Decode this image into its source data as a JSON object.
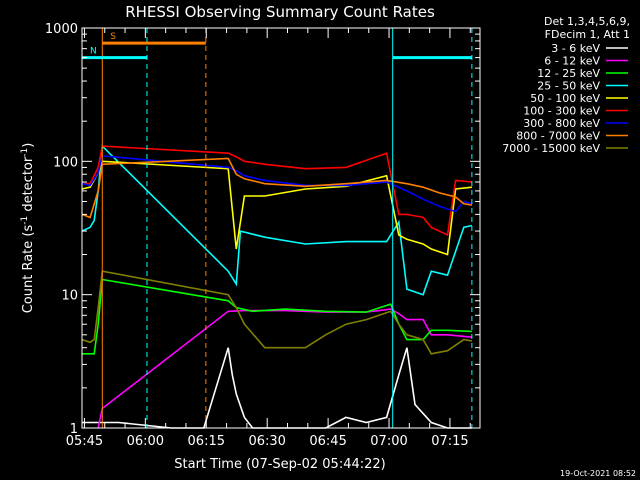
{
  "chart_data": {
    "type": "line",
    "title": "RHESSI Observing Summary Count Rates",
    "xlabel": "Start Time (07-Sep-02 05:44:22)",
    "ylabel_main": "Count Rate (s",
    "ylabel_sup1": "-1",
    "ylabel_mid": " detector",
    "ylabel_sup2": "-1",
    "ylabel_end": ")",
    "x_ticks": [
      "05:45",
      "06:00",
      "06:15",
      "06:30",
      "06:45",
      "07:00",
      "07:15"
    ],
    "x_tick_minutes": [
      0.6,
      15.6,
      30.6,
      45.6,
      60.6,
      75.6,
      90.6
    ],
    "xlim_minutes": [
      0,
      98
    ],
    "y_scale": "log",
    "ylim": [
      1,
      1000
    ],
    "y_ticks": [
      "1",
      "10",
      "100",
      "1000"
    ],
    "legend": {
      "header1": "Det 1,3,4,5,6,9,",
      "header2": "FDecim 1, Att 1",
      "placement": "top-right, outside plot"
    },
    "series": [
      {
        "name": "3 - 6 keV",
        "color": "#ffffff",
        "points": [
          [
            0,
            1.1
          ],
          [
            5,
            1.1
          ],
          [
            9,
            1.1
          ],
          [
            22,
            1.0
          ],
          [
            30,
            1.0
          ],
          [
            36,
            4
          ],
          [
            37,
            2.5
          ],
          [
            38,
            1.8
          ],
          [
            40,
            1.2
          ],
          [
            42,
            1.0
          ],
          [
            60,
            1.0
          ],
          [
            65,
            1.2
          ],
          [
            70,
            1.1
          ],
          [
            75,
            1.2
          ],
          [
            78,
            2.5
          ],
          [
            80,
            4
          ],
          [
            82,
            1.5
          ],
          [
            86,
            1.1
          ],
          [
            90,
            1.0
          ],
          [
            96,
            1.0
          ]
        ]
      },
      {
        "name": "6 - 12 keV",
        "color": "#ff00ff",
        "points": [
          [
            4,
            1.0
          ],
          [
            5,
            1.4
          ],
          [
            36,
            7.5
          ],
          [
            40,
            7.6
          ],
          [
            50,
            7.6
          ],
          [
            60,
            7.4
          ],
          [
            70,
            7.4
          ],
          [
            76,
            7.8
          ],
          [
            78,
            7.2
          ],
          [
            80,
            6.5
          ],
          [
            84,
            6.5
          ],
          [
            86,
            5.0
          ],
          [
            90,
            5.0
          ],
          [
            96,
            4.8
          ]
        ]
      },
      {
        "name": "12 - 25 keV",
        "color": "#00ff00",
        "points": [
          [
            0,
            3.6
          ],
          [
            3,
            3.6
          ],
          [
            4,
            6
          ],
          [
            5,
            13
          ],
          [
            36,
            9
          ],
          [
            38,
            8
          ],
          [
            42,
            7.5
          ],
          [
            50,
            7.8
          ],
          [
            60,
            7.5
          ],
          [
            70,
            7.4
          ],
          [
            76,
            8.5
          ],
          [
            78,
            6
          ],
          [
            80,
            4.6
          ],
          [
            84,
            4.6
          ],
          [
            86,
            5.4
          ],
          [
            90,
            5.4
          ],
          [
            96,
            5.3
          ]
        ]
      },
      {
        "name": "25 - 50 keV",
        "color": "#00ffff",
        "points": [
          [
            0,
            30
          ],
          [
            2,
            32
          ],
          [
            3,
            36
          ],
          [
            4,
            60
          ],
          [
            5,
            130
          ],
          [
            36,
            15
          ],
          [
            38,
            12
          ],
          [
            39,
            30
          ],
          [
            45,
            27
          ],
          [
            55,
            24
          ],
          [
            65,
            25
          ],
          [
            75,
            25
          ],
          [
            78,
            35
          ],
          [
            80,
            11
          ],
          [
            84,
            10
          ],
          [
            86,
            15
          ],
          [
            90,
            14
          ],
          [
            94,
            32
          ],
          [
            96,
            33
          ]
        ]
      },
      {
        "name": "50 - 100 keV",
        "color": "#ffff00",
        "points": [
          [
            0,
            62
          ],
          [
            2,
            64
          ],
          [
            4,
            82
          ],
          [
            5,
            100
          ],
          [
            36,
            88
          ],
          [
            38,
            22
          ],
          [
            40,
            55
          ],
          [
            45,
            55
          ],
          [
            55,
            62
          ],
          [
            65,
            65
          ],
          [
            75,
            78
          ],
          [
            78,
            28
          ],
          [
            80,
            26
          ],
          [
            84,
            24
          ],
          [
            86,
            22
          ],
          [
            90,
            20
          ],
          [
            92,
            62
          ],
          [
            96,
            64
          ]
        ]
      },
      {
        "name": "100 - 300 keV",
        "color": "#ff0000",
        "points": [
          [
            0,
            68
          ],
          [
            2,
            68
          ],
          [
            4,
            90
          ],
          [
            5,
            130
          ],
          [
            36,
            115
          ],
          [
            38,
            108
          ],
          [
            40,
            100
          ],
          [
            45,
            95
          ],
          [
            55,
            88
          ],
          [
            65,
            90
          ],
          [
            75,
            115
          ],
          [
            78,
            40
          ],
          [
            80,
            40
          ],
          [
            84,
            38
          ],
          [
            86,
            32
          ],
          [
            90,
            28
          ],
          [
            92,
            72
          ],
          [
            96,
            70
          ]
        ]
      },
      {
        "name": "300 - 800 keV",
        "color": "#0000ff",
        "points": [
          [
            0,
            68
          ],
          [
            2,
            66
          ],
          [
            4,
            82
          ],
          [
            5,
            110
          ],
          [
            36,
            90
          ],
          [
            38,
            85
          ],
          [
            40,
            78
          ],
          [
            45,
            72
          ],
          [
            55,
            66
          ],
          [
            65,
            66
          ],
          [
            75,
            70
          ],
          [
            80,
            60
          ],
          [
            84,
            52
          ],
          [
            88,
            46
          ],
          [
            92,
            42
          ],
          [
            94,
            50
          ],
          [
            96,
            48
          ]
        ]
      },
      {
        "name": "800 - 7000 keV",
        "color": "#ff8000",
        "points": [
          [
            0,
            40
          ],
          [
            2,
            38
          ],
          [
            4,
            60
          ],
          [
            5,
            95
          ],
          [
            36,
            105
          ],
          [
            38,
            80
          ],
          [
            40,
            74
          ],
          [
            45,
            68
          ],
          [
            55,
            65
          ],
          [
            65,
            68
          ],
          [
            75,
            72
          ],
          [
            80,
            68
          ],
          [
            84,
            64
          ],
          [
            88,
            58
          ],
          [
            92,
            54
          ],
          [
            94,
            48
          ],
          [
            96,
            47
          ]
        ]
      },
      {
        "name": "7000 - 15000 keV",
        "color": "#808000",
        "points": [
          [
            0,
            4.6
          ],
          [
            2,
            4.4
          ],
          [
            3,
            4.6
          ],
          [
            4,
            8
          ],
          [
            5,
            15
          ],
          [
            36,
            10
          ],
          [
            38,
            8
          ],
          [
            40,
            6
          ],
          [
            45,
            4
          ],
          [
            55,
            4
          ],
          [
            60,
            5
          ],
          [
            65,
            6
          ],
          [
            70,
            6.5
          ],
          [
            76,
            7.5
          ],
          [
            78,
            6
          ],
          [
            80,
            5
          ],
          [
            84,
            4.6
          ],
          [
            86,
            3.6
          ],
          [
            90,
            3.8
          ],
          [
            94,
            4.6
          ],
          [
            96,
            4.5
          ]
        ]
      }
    ],
    "flags": [
      {
        "label": "S",
        "color": "#ff8000",
        "start": 5,
        "end": 30.5,
        "level": 770
      },
      {
        "label": "N",
        "color": "#00ffff",
        "start": 0,
        "end": 16,
        "level": 600
      },
      {
        "label": "",
        "color": "#00ffff",
        "start": 76.5,
        "end": 96,
        "level": 600
      }
    ],
    "vlines": [
      {
        "x": 5,
        "color": "#ff8000",
        "style": "solid"
      },
      {
        "x": 30.5,
        "color": "#ff8000",
        "style": "dashed"
      },
      {
        "x": 16,
        "color": "#00ffff",
        "style": "dashed"
      },
      {
        "x": 76.5,
        "color": "#00ffff",
        "style": "solid"
      },
      {
        "x": 96,
        "color": "#00ffff",
        "style": "dashed"
      }
    ]
  },
  "footer": {
    "timestamp": "19-Oct-2021 08:52"
  }
}
